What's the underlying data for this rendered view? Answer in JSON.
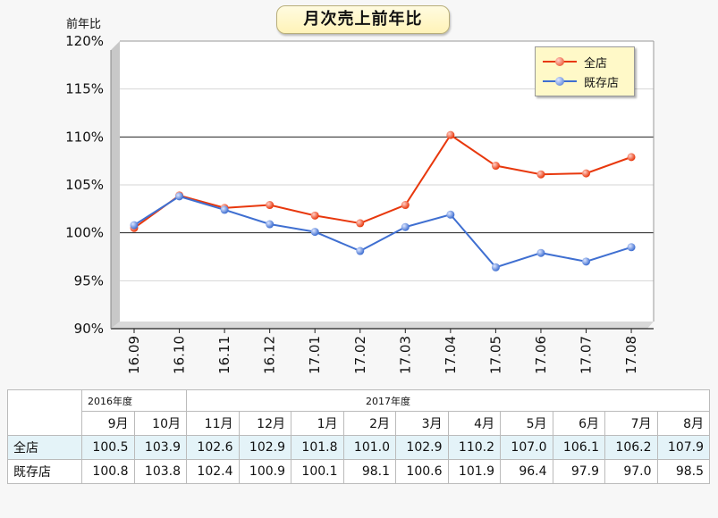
{
  "header": {
    "title": "月次売上前年比",
    "y_unit_label": "前年比"
  },
  "legend": [
    "全店",
    "既存店"
  ],
  "chart_data": {
    "type": "line",
    "title": "月次売上前年比",
    "ylabel": "前年比",
    "xlabel": "",
    "categories": [
      "16.09",
      "16.10",
      "16.11",
      "16.12",
      "17.01",
      "17.02",
      "17.03",
      "17.04",
      "17.05",
      "17.06",
      "17.07",
      "17.08"
    ],
    "ylim": [
      90,
      120
    ],
    "yticks": [
      "90%",
      "95%",
      "100%",
      "105%",
      "110%",
      "115%",
      "120%"
    ],
    "series": [
      {
        "name": "全店",
        "color": "#e8380d",
        "values": [
          100.5,
          103.9,
          102.6,
          102.9,
          101.8,
          101.0,
          102.9,
          110.2,
          107.0,
          106.1,
          106.2,
          107.9
        ]
      },
      {
        "name": "既存店",
        "color": "#3f6fd1",
        "values": [
          100.8,
          103.8,
          102.4,
          100.9,
          100.1,
          98.1,
          100.6,
          101.9,
          96.4,
          97.9,
          97.0,
          98.5
        ]
      }
    ],
    "legend_position": "top-right",
    "grid": true
  },
  "table": {
    "year_labels": [
      "2016年度",
      "2017年度"
    ],
    "months": [
      "9月",
      "10月",
      "11月",
      "12月",
      "1月",
      "2月",
      "3月",
      "4月",
      "5月",
      "6月",
      "7月",
      "8月"
    ],
    "rows": [
      {
        "label": "全店",
        "values": [
          "100.5",
          "103.9",
          "102.6",
          "102.9",
          "101.8",
          "101.0",
          "102.9",
          "110.2",
          "107.0",
          "106.1",
          "106.2",
          "107.9"
        ]
      },
      {
        "label": "既存店",
        "values": [
          "100.8",
          "103.8",
          "102.4",
          "100.9",
          "100.1",
          "98.1",
          "100.6",
          "101.9",
          "96.4",
          "97.9",
          "97.0",
          "98.5"
        ]
      }
    ]
  }
}
